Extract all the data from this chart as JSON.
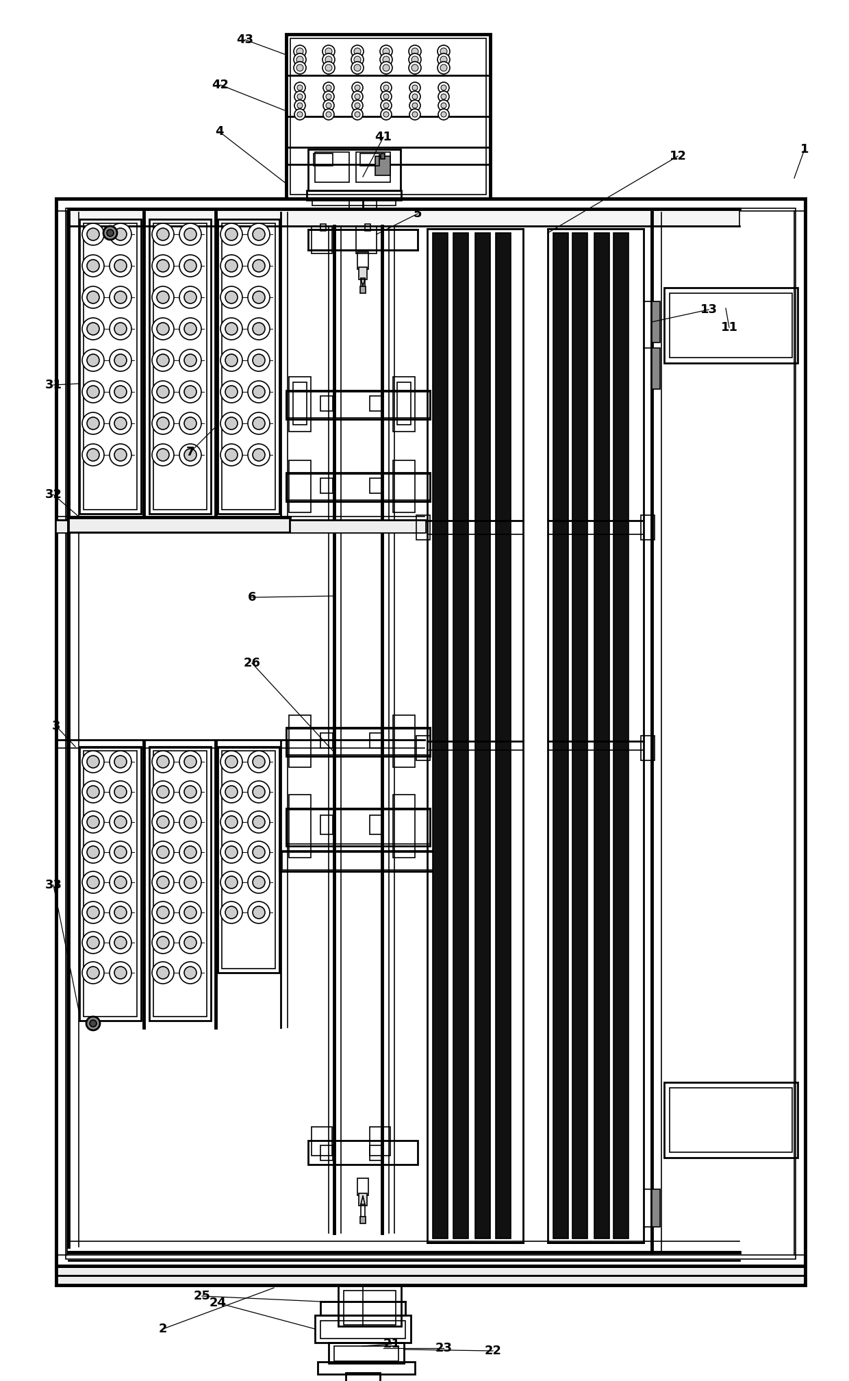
{
  "bg_color": "#ffffff",
  "line_color": "#000000",
  "fig_width": 12.4,
  "fig_height": 20.16,
  "labels_data": [
    [
      "1",
      1155,
      218
    ],
    [
      "2",
      238,
      1940
    ],
    [
      "3",
      82,
      1060
    ],
    [
      "4",
      320,
      192
    ],
    [
      "5",
      610,
      312
    ],
    [
      "6",
      368,
      872
    ],
    [
      "7",
      278,
      660
    ],
    [
      "11",
      1065,
      478
    ],
    [
      "12",
      990,
      228
    ],
    [
      "13",
      1035,
      452
    ],
    [
      "21",
      572,
      1962
    ],
    [
      "22",
      720,
      1972
    ],
    [
      "23",
      648,
      1968
    ],
    [
      "24",
      318,
      1902
    ],
    [
      "25",
      295,
      1892
    ],
    [
      "26",
      368,
      968
    ],
    [
      "31",
      78,
      562
    ],
    [
      "32",
      78,
      722
    ],
    [
      "33",
      78,
      1292
    ],
    [
      "41",
      560,
      200
    ],
    [
      "42",
      322,
      124
    ],
    [
      "43",
      358,
      58
    ]
  ]
}
